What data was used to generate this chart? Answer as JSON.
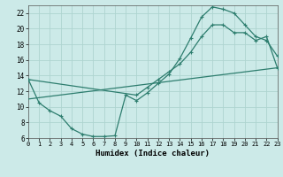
{
  "xlabel": "Humidex (Indice chaleur)",
  "bg_color": "#cceae8",
  "line_color": "#2d7d6e",
  "grid_color": "#aed4d0",
  "curve1_x": [
    0,
    1,
    2,
    3,
    4,
    5,
    6,
    7,
    8,
    9,
    10,
    11,
    12,
    13,
    14,
    15,
    16,
    17,
    18,
    19,
    20,
    21,
    22,
    23
  ],
  "curve1_y": [
    13.5,
    10.5,
    9.5,
    8.8,
    7.2,
    6.5,
    6.2,
    6.2,
    6.3,
    11.5,
    10.8,
    11.8,
    13.0,
    14.2,
    16.2,
    18.8,
    21.5,
    22.8,
    22.5,
    22.0,
    20.5,
    19.0,
    18.5,
    16.5
  ],
  "curve2_x": [
    0,
    10,
    11,
    12,
    13,
    14,
    15,
    16,
    17,
    18,
    19,
    20,
    21,
    22,
    23
  ],
  "curve2_y": [
    13.5,
    11.5,
    12.5,
    13.5,
    14.5,
    15.5,
    17.0,
    19.0,
    20.5,
    20.5,
    19.5,
    19.5,
    18.5,
    19.0,
    15.0
  ],
  "curve3_x": [
    0,
    23
  ],
  "curve3_y": [
    11.0,
    15.0
  ],
  "xlim": [
    0,
    23
  ],
  "ylim": [
    6,
    23
  ],
  "xticks": [
    0,
    1,
    2,
    3,
    4,
    5,
    6,
    7,
    8,
    9,
    10,
    11,
    12,
    13,
    14,
    15,
    16,
    17,
    18,
    19,
    20,
    21,
    22,
    23
  ],
  "yticks": [
    6,
    8,
    10,
    12,
    14,
    16,
    18,
    20,
    22
  ],
  "figw": 3.2,
  "figh": 2.0,
  "dpi": 100
}
